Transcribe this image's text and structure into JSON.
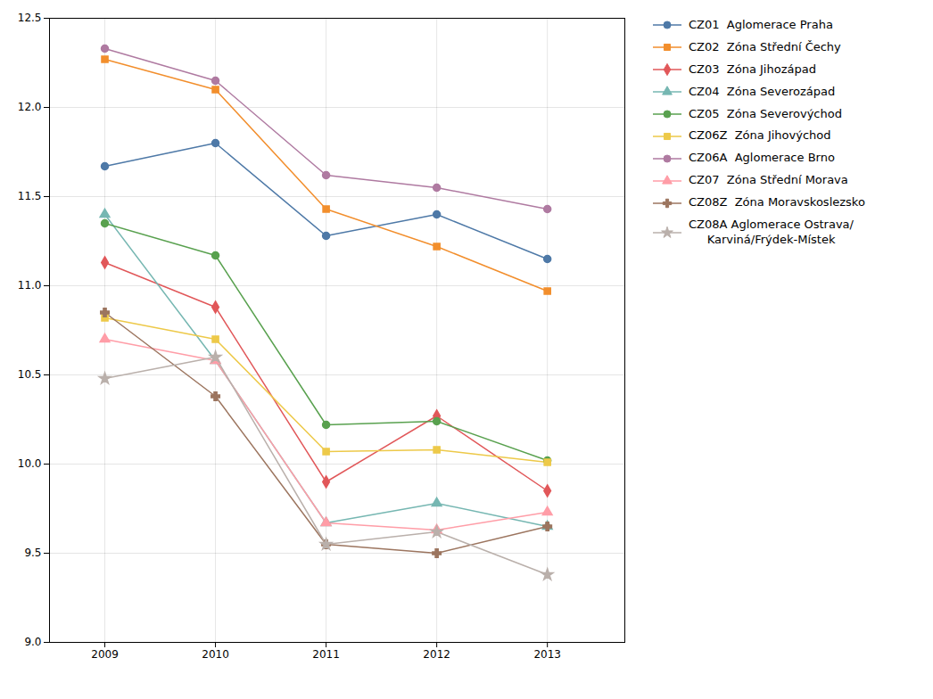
{
  "chart_data": {
    "type": "line",
    "x": [
      2009,
      2010,
      2011,
      2012,
      2013
    ],
    "xlim": [
      2008.5,
      2013.7
    ],
    "xticks": [
      2009,
      2010,
      2011,
      2012,
      2013
    ],
    "ylim": [
      9.0,
      12.5
    ],
    "yticks": [
      {
        "value": 9.0,
        "label": "9.0"
      },
      9.5,
      {
        "value": 10.0,
        "label": "10.0"
      },
      10.5,
      {
        "value": 11.0,
        "label": "11.0"
      },
      11.5,
      {
        "value": 12.0,
        "label": "12.0"
      },
      12.5
    ],
    "grid": true,
    "legend": "right",
    "series": [
      {
        "name": "CZ01  Aglomerace Praha",
        "marker": "circle",
        "values": [
          11.67,
          11.8,
          11.28,
          11.4,
          11.15
        ]
      },
      {
        "name": "CZ02  Zóna Střední Čechy",
        "marker": "square",
        "values": [
          12.27,
          12.1,
          11.43,
          11.22,
          10.97
        ]
      },
      {
        "name": "CZ03  Zóna Jihozápad",
        "marker": "diamond",
        "values": [
          11.13,
          10.88,
          9.9,
          10.27,
          9.85
        ]
      },
      {
        "name": "CZ04  Zóna Severozápad",
        "marker": "triangle",
        "values": [
          11.4,
          10.58,
          9.67,
          9.78,
          9.65
        ]
      },
      {
        "name": "CZ05  Zóna Severovýchod",
        "marker": "circle",
        "values": [
          11.35,
          11.17,
          10.22,
          10.24,
          10.02
        ]
      },
      {
        "name": "CZ06Z  Zóna Jihovýchod",
        "marker": "square",
        "values": [
          10.82,
          10.7,
          10.07,
          10.08,
          10.01
        ]
      },
      {
        "name": "CZ06A  Aglomerace Brno",
        "marker": "circle",
        "values": [
          12.33,
          12.15,
          11.62,
          11.55,
          11.43
        ]
      },
      {
        "name": "CZ07  Zóna Střední Morava",
        "marker": "triangle",
        "values": [
          10.7,
          10.58,
          9.67,
          9.63,
          9.73
        ]
      },
      {
        "name": "CZ08Z  Zóna Moravskoslezsko",
        "marker": "cross",
        "values": [
          10.85,
          10.38,
          9.55,
          9.5,
          9.65
        ]
      },
      {
        "name": "CZ08A Aglomerace Ostrava/\n     Karviná/Frýdek-Místek",
        "marker": "star",
        "values": [
          10.48,
          10.6,
          9.55,
          9.62,
          9.38
        ]
      }
    ]
  }
}
